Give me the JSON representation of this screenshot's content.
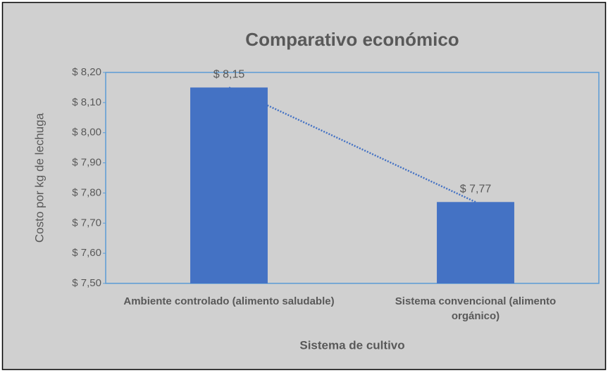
{
  "chart_data": {
    "type": "bar",
    "title": "Comparativo económico",
    "x_label": "Sistema de cultivo",
    "y_label": "Costo por kg de lechuga",
    "categories": [
      "Ambiente controlado (alimento saludable)",
      "Sistema convencional (alimento orgánico)"
    ],
    "values": [
      8.15,
      7.77
    ],
    "value_labels": [
      "$ 8,15",
      "$ 7,77"
    ],
    "color": "#4472c4",
    "trendline": true,
    "ylim": [
      7.5,
      8.2
    ],
    "yticks": [
      {
        "value": 7.5,
        "label": "$ 7,50"
      },
      {
        "value": 7.6,
        "label": "$ 7,60"
      },
      {
        "value": 7.7,
        "label": "$ 7,70"
      },
      {
        "value": 7.8,
        "label": "$ 7,80"
      },
      {
        "value": 7.9,
        "label": "$ 7,90"
      },
      {
        "value": 8.0,
        "label": "$ 8,00"
      },
      {
        "value": 8.1,
        "label": "$ 8,10"
      },
      {
        "value": 8.2,
        "label": "$ 8,20"
      }
    ]
  }
}
